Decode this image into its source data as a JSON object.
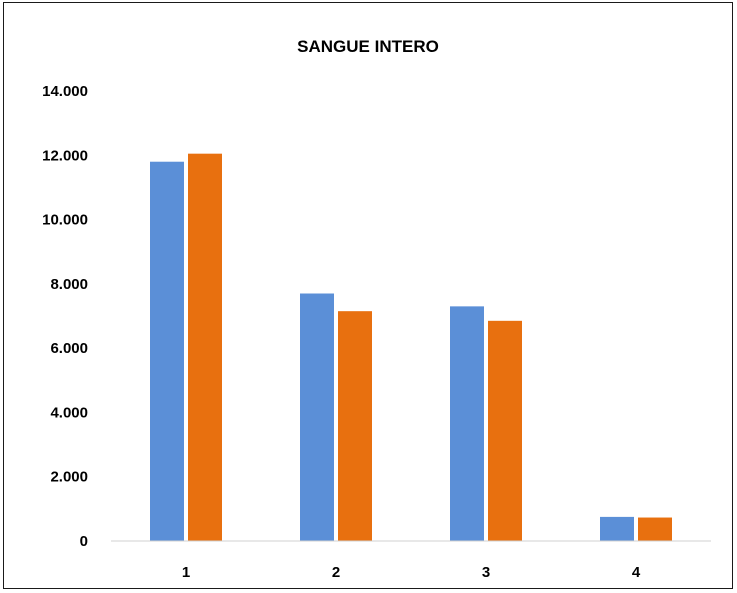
{
  "chart_data": {
    "type": "bar",
    "title": "SANGUE INTERO",
    "xlabel": "",
    "ylabel": "",
    "categories": [
      "1",
      "2",
      "3",
      "4"
    ],
    "ylim": [
      0,
      14000
    ],
    "yticks": [
      {
        "value": 0,
        "label": "0"
      },
      {
        "value": 2000,
        "label": "2.000"
      },
      {
        "value": 4000,
        "label": "4.000"
      },
      {
        "value": 6000,
        "label": "6.000"
      },
      {
        "value": 8000,
        "label": "8.000"
      },
      {
        "value": 10000,
        "label": "10.000"
      },
      {
        "value": 12000,
        "label": "12.000"
      },
      {
        "value": 14000,
        "label": "14.000"
      }
    ],
    "series": [
      {
        "color": "#5b8fd7",
        "values": [
          11800,
          7700,
          7300,
          750
        ]
      },
      {
        "color": "#e8700f",
        "values": [
          12050,
          7150,
          6850,
          730
        ]
      }
    ],
    "grid": false,
    "legend": "none"
  }
}
